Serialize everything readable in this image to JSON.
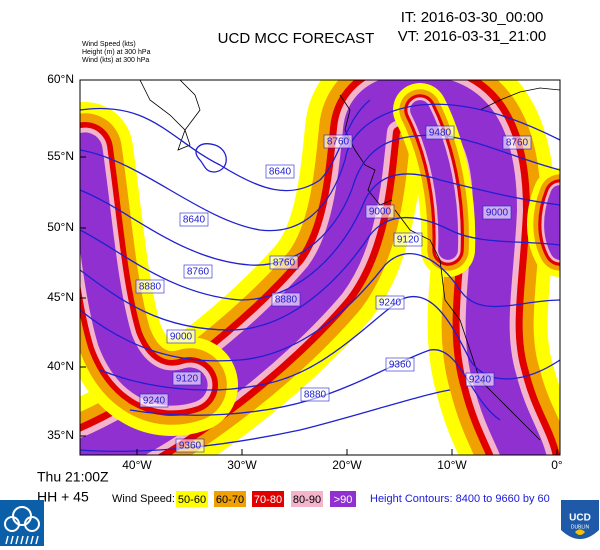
{
  "header": {
    "title": "UCD MCC FORECAST",
    "init_time": "IT: 2016-03-30_00:00",
    "valid_time": "VT: 2016-03-31_21:00",
    "fields": [
      "Wind Speed   (kts)",
      "Height  (m)    at  300 hPa",
      "Wind   (kts)   at  300 hPa"
    ]
  },
  "map": {
    "lat_labels": [
      "60°N",
      "55°N",
      "50°N",
      "45°N",
      "40°N",
      "35°N"
    ],
    "lon_labels": [
      "40°W",
      "30°W",
      "20°W",
      "10°W",
      "0°"
    ],
    "contour_labels": [
      "8640",
      "8760",
      "8640",
      "8760",
      "8760",
      "8880",
      "8880",
      "9000",
      "9120",
      "9240",
      "9480",
      "9360",
      "9000",
      "9120",
      "9240",
      "8880",
      "8760",
      "9000",
      "9240",
      "9360"
    ]
  },
  "footer": {
    "day_time": "Thu 21:00Z",
    "lead": "HH + 45",
    "legend_title": "Wind Speed:",
    "legend": [
      "50-60",
      "60-70",
      "70-80",
      "80-90",
      ">90"
    ],
    "contours_note": "Height Contours: 8400 to 9660 by 60"
  },
  "logo": {
    "name": "UCD",
    "city": "DUBLIN"
  }
}
